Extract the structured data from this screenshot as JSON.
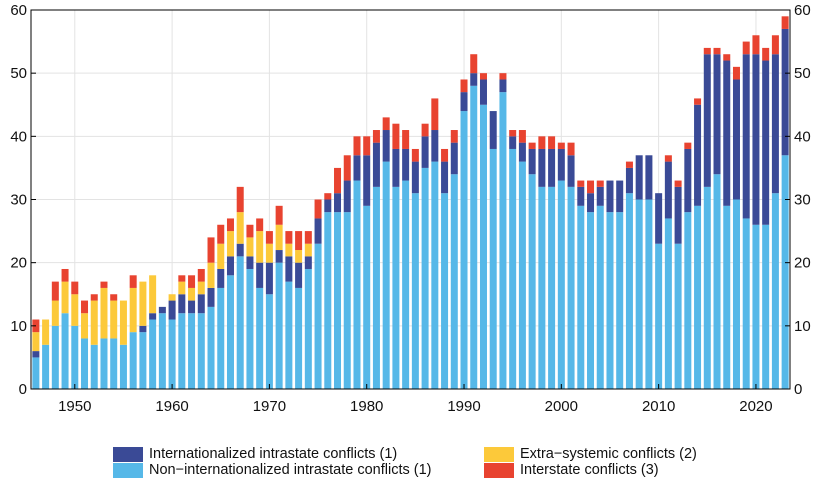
{
  "chart_data": {
    "type": "bar",
    "stacked": true,
    "title": "",
    "xlabel": "",
    "ylabel": "",
    "ylim": [
      0,
      60
    ],
    "xlim": [
      1945.5,
      2023.5
    ],
    "y_ticks": [
      0,
      10,
      20,
      30,
      40,
      50,
      60
    ],
    "x_ticks": [
      1950,
      1960,
      1970,
      1980,
      1990,
      2000,
      2010,
      2020
    ],
    "grid": true,
    "legend_position": "bottom",
    "x": [
      1946,
      1947,
      1948,
      1949,
      1950,
      1951,
      1952,
      1953,
      1954,
      1955,
      1956,
      1957,
      1958,
      1959,
      1960,
      1961,
      1962,
      1963,
      1964,
      1965,
      1966,
      1967,
      1968,
      1969,
      1970,
      1971,
      1972,
      1973,
      1974,
      1975,
      1976,
      1977,
      1978,
      1979,
      1980,
      1981,
      1982,
      1983,
      1984,
      1985,
      1986,
      1987,
      1988,
      1989,
      1990,
      1991,
      1992,
      1993,
      1994,
      1995,
      1996,
      1997,
      1998,
      1999,
      2000,
      2001,
      2002,
      2003,
      2004,
      2005,
      2006,
      2007,
      2008,
      2009,
      2010,
      2011,
      2012,
      2013,
      2014,
      2015,
      2016,
      2017,
      2018,
      2019,
      2020,
      2021,
      2022,
      2023
    ],
    "series": [
      {
        "name": "Non−internationalized intrastate conflicts (1)",
        "color": "#56b8e8",
        "values": [
          5,
          7,
          10,
          12,
          10,
          8,
          7,
          8,
          8,
          7,
          9,
          9,
          11,
          12,
          11,
          12,
          12,
          12,
          13,
          16,
          18,
          21,
          19,
          16,
          15,
          20,
          17,
          16,
          19,
          23,
          28,
          28,
          28,
          33,
          29,
          32,
          36,
          32,
          33,
          31,
          35,
          36,
          31,
          34,
          44,
          48,
          45,
          38,
          47,
          38,
          36,
          34,
          32,
          32,
          33,
          32,
          29,
          28,
          29,
          28,
          28,
          31,
          30,
          30,
          23,
          27,
          23,
          28,
          29,
          32,
          34,
          29,
          30,
          27,
          26,
          26,
          31,
          37
        ]
      },
      {
        "name": "Internationalized intrastate conflicts (1)",
        "color": "#3a4a96",
        "values": [
          1,
          0,
          0,
          0,
          0,
          0,
          0,
          0,
          0,
          0,
          0,
          1,
          1,
          1,
          3,
          3,
          2,
          3,
          3,
          3,
          3,
          2,
          2,
          4,
          5,
          2,
          4,
          4,
          2,
          4,
          2,
          3,
          5,
          4,
          8,
          7,
          5,
          6,
          5,
          5,
          5,
          5,
          5,
          5,
          3,
          2,
          4,
          6,
          2,
          2,
          3,
          4,
          6,
          6,
          5,
          5,
          3,
          3,
          3,
          5,
          5,
          4,
          7,
          7,
          8,
          9,
          9,
          10,
          16,
          21,
          19,
          23,
          19,
          26,
          27,
          26,
          22,
          20
        ]
      },
      {
        "name": "Extra−systemic conflicts (2)",
        "color": "#fcc93a",
        "values": [
          3,
          4,
          4,
          5,
          5,
          4,
          7,
          8,
          6,
          7,
          7,
          7,
          6,
          0,
          1,
          2,
          2,
          2,
          4,
          4,
          4,
          5,
          3,
          5,
          3,
          4,
          2,
          2,
          2,
          0,
          0,
          0,
          0,
          0,
          0,
          0,
          0,
          0,
          0,
          0,
          0,
          0,
          0,
          0,
          0,
          0,
          0,
          0,
          0,
          0,
          0,
          0,
          0,
          0,
          0,
          0,
          0,
          0,
          0,
          0,
          0,
          0,
          0,
          0,
          0,
          0,
          0,
          0,
          0,
          0,
          0,
          0,
          0,
          0,
          0,
          0,
          0,
          0
        ]
      },
      {
        "name": "Interstate conflicts (3)",
        "color": "#e84330",
        "values": [
          2,
          0,
          3,
          2,
          2,
          2,
          1,
          1,
          1,
          0,
          2,
          0,
          0,
          0,
          0,
          1,
          2,
          2,
          4,
          3,
          2,
          4,
          2,
          2,
          2,
          3,
          2,
          3,
          2,
          3,
          1,
          4,
          4,
          3,
          3,
          2,
          2,
          4,
          3,
          2,
          2,
          5,
          2,
          2,
          2,
          3,
          1,
          0,
          1,
          1,
          2,
          1,
          2,
          2,
          1,
          2,
          1,
          2,
          1,
          0,
          0,
          1,
          0,
          0,
          0,
          1,
          1,
          1,
          1,
          1,
          1,
          1,
          2,
          2,
          3,
          2,
          3,
          2
        ]
      }
    ]
  },
  "legend": {
    "items": [
      {
        "label": "Internationalized intrastate conflicts (1)",
        "color": "#3a4a96"
      },
      {
        "label": "Extra−systemic conflicts (2)",
        "color": "#fcc93a"
      },
      {
        "label": "Non−internationalized intrastate conflicts (1)",
        "color": "#56b8e8"
      },
      {
        "label": "Interstate conflicts (3)",
        "color": "#e84330"
      }
    ]
  }
}
